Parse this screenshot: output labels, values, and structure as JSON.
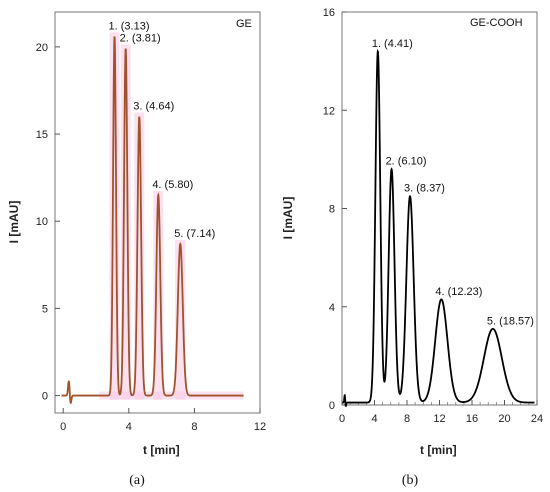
{
  "chart_data": [
    {
      "type": "line",
      "panel_label": "(a)",
      "title": "GE",
      "xlabel": "t [min]",
      "ylabel": "I [mAU]",
      "xlim": [
        -0.5,
        12
      ],
      "ylim": [
        -1,
        22
      ],
      "xticks": [
        0,
        4,
        8,
        12
      ],
      "yticks": [
        0,
        5,
        10,
        15,
        20
      ],
      "baseline": 0,
      "line_color": "#a0522d",
      "highlight_color": "#f7c6e4",
      "peaks": [
        {
          "label": "1. (3.13)",
          "rt": 3.13,
          "height": 20.6,
          "width": 0.09
        },
        {
          "label": "2. (3.81)",
          "rt": 3.81,
          "height": 19.9,
          "width": 0.1
        },
        {
          "label": "3. (4.64)",
          "rt": 4.64,
          "height": 16.0,
          "width": 0.11
        },
        {
          "label": "4. (5.80)",
          "rt": 5.8,
          "height": 11.5,
          "width": 0.12
        },
        {
          "label": "5. (7.14)",
          "rt": 7.14,
          "height": 8.7,
          "width": 0.15
        }
      ]
    },
    {
      "type": "line",
      "panel_label": "(b)",
      "title": "GE-COOH",
      "xlabel": "t [min]",
      "ylabel": "I [mAU]",
      "xlim": [
        0,
        24
      ],
      "ylim": [
        0,
        16
      ],
      "xticks": [
        0,
        4,
        8,
        12,
        16,
        20,
        24
      ],
      "yticks": [
        0,
        4,
        8,
        12,
        16
      ],
      "baseline": 0.1,
      "line_color": "#000000",
      "peaks": [
        {
          "label": "1. (4.41)",
          "rt": 4.41,
          "height": 14.3,
          "width": 0.3
        },
        {
          "label": "2. (6.10)",
          "rt": 6.1,
          "height": 9.5,
          "width": 0.36
        },
        {
          "label": "3. (8.37)",
          "rt": 8.37,
          "height": 8.4,
          "width": 0.45
        },
        {
          "label": "4. (12.23)",
          "rt": 12.23,
          "height": 4.2,
          "width": 0.75
        },
        {
          "label": "5. (18.57)",
          "rt": 18.57,
          "height": 3.0,
          "width": 1.1
        }
      ]
    }
  ]
}
